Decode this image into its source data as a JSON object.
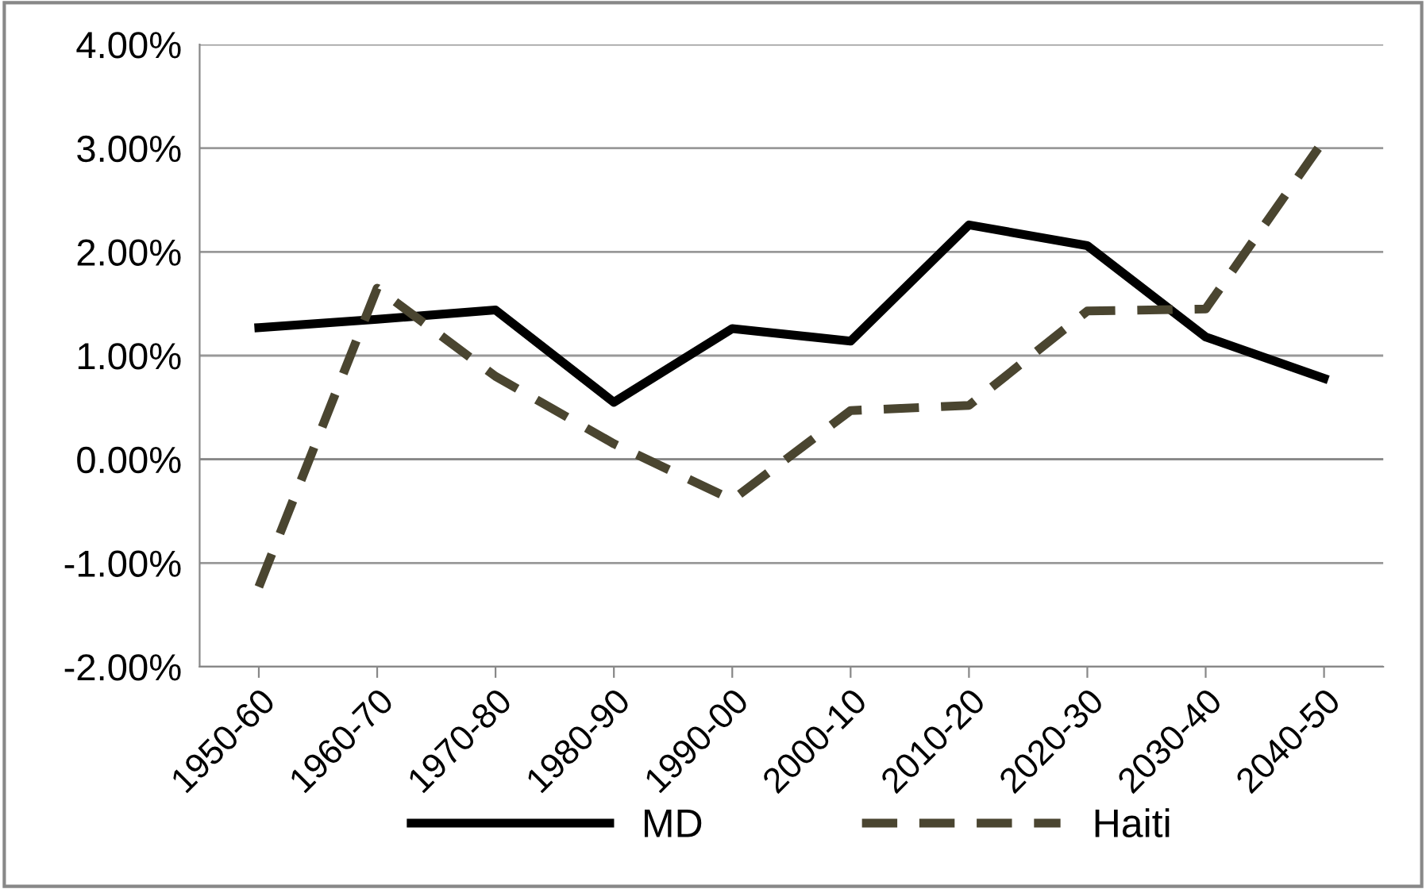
{
  "chart_data": {
    "type": "line",
    "categories": [
      "1950-60",
      "1960-70",
      "1970-80",
      "1980-90",
      "1990-00",
      "2000-10",
      "2010-20",
      "2020-30",
      "2030-40",
      "2040-50"
    ],
    "series": [
      {
        "name": "MD",
        "color": "#000000",
        "line_style": "solid",
        "values": [
          1.27,
          1.35,
          1.44,
          0.55,
          1.26,
          1.14,
          2.26,
          2.06,
          1.18,
          0.78
        ]
      },
      {
        "name": "Haiti",
        "color": "#4a4530",
        "line_style": "dashed",
        "values": [
          -1.23,
          1.65,
          0.8,
          0.15,
          -0.39,
          0.47,
          0.52,
          1.43,
          1.45,
          3.08
        ]
      }
    ],
    "ylim": [
      -2,
      4
    ],
    "yticks": [
      {
        "value": -2,
        "label": "-2.00%"
      },
      {
        "value": -1,
        "label": "-1.00%"
      },
      {
        "value": 0,
        "label": "0.00%"
      },
      {
        "value": 1,
        "label": "1.00%"
      },
      {
        "value": 2,
        "label": "2.00%"
      },
      {
        "value": 3,
        "label": "3.00%"
      },
      {
        "value": 4,
        "label": "4.00%"
      }
    ],
    "grid": "y",
    "legend": "bottom",
    "marker": "none"
  }
}
